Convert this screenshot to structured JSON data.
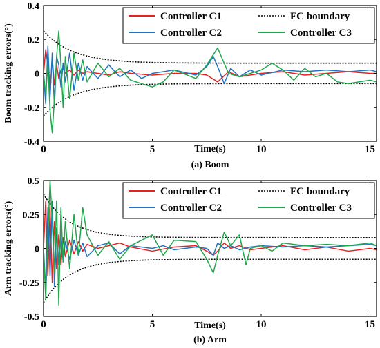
{
  "chart_data": [
    {
      "type": "line",
      "xlabel": "Time(s)",
      "ylabel": "Boom tracking errors(°)",
      "caption": "(a) Boom",
      "xlim": [
        0,
        15.3
      ],
      "ylim": [
        -0.4,
        0.4
      ],
      "xticks": [
        0,
        5,
        10,
        15
      ],
      "yticks": [
        -0.4,
        -0.2,
        0,
        0.2,
        0.4
      ],
      "xtick_labels": [
        "0",
        "5",
        "10",
        "15"
      ],
      "ytick_labels": [
        "-0.4",
        "-0.2",
        "0",
        "0.2",
        "0.4"
      ],
      "grid": false,
      "legend": {
        "placement": "top-right",
        "columns": 2,
        "order": [
          "Controller C1",
          "FC boundary",
          "Controller C2",
          "Controller C3"
        ]
      },
      "boundary": {
        "name": "FC boundary",
        "color": "#000000",
        "style": "dotted",
        "start": 0.25,
        "end": 0.06,
        "decay": 0.75
      },
      "series": [
        {
          "name": "Controller C1",
          "color": "#e8201f",
          "x": [
            0,
            0.1,
            0.2,
            0.3,
            0.4,
            0.5,
            0.6,
            0.7,
            0.8,
            0.9,
            1.0,
            1.2,
            1.4,
            1.6,
            1.8,
            2.0,
            2.5,
            3.0,
            3.5,
            4.0,
            5.0,
            6.0,
            7.0,
            7.5,
            8.0,
            8.5,
            9.0,
            10.0,
            11.0,
            12.0,
            13.0,
            14.0,
            15.0,
            15.3
          ],
          "y": [
            0,
            0.14,
            0.05,
            -0.12,
            0.09,
            -0.07,
            0.05,
            -0.03,
            0.02,
            0.03,
            0.0,
            0.02,
            -0.01,
            0.02,
            0.0,
            0.01,
            0.0,
            -0.01,
            0.01,
            0.0,
            -0.01,
            0.0,
            0.0,
            -0.01,
            -0.05,
            0.01,
            -0.02,
            0.0,
            0.01,
            -0.01,
            0.0,
            0.01,
            0.0,
            0.0
          ]
        },
        {
          "name": "Controller C2",
          "color": "#1f73c2",
          "x": [
            0,
            0.1,
            0.2,
            0.3,
            0.4,
            0.5,
            0.6,
            0.7,
            0.8,
            0.9,
            1.0,
            1.2,
            1.4,
            1.6,
            1.8,
            2.0,
            2.5,
            3.0,
            3.5,
            4.0,
            4.5,
            5.0,
            6.0,
            7.0,
            7.5,
            7.8,
            8.0,
            8.3,
            8.6,
            9.0,
            9.5,
            10.0,
            11.0,
            12.0,
            13.0,
            14.0,
            15.0,
            15.3
          ],
          "y": [
            0,
            -0.18,
            0.16,
            -0.14,
            0.12,
            -0.2,
            0.1,
            0.05,
            -0.08,
            0.06,
            -0.05,
            0.12,
            -0.1,
            0.06,
            -0.04,
            0.04,
            -0.03,
            0.05,
            -0.02,
            0.02,
            -0.03,
            0.0,
            0.02,
            -0.01,
            0.04,
            0.1,
            0.04,
            -0.06,
            0.03,
            -0.02,
            0.02,
            -0.01,
            0.02,
            0.01,
            0.02,
            0.01,
            0.02,
            0.01
          ]
        },
        {
          "name": "Controller C3",
          "color": "#1ea84a",
          "x": [
            0,
            0.1,
            0.2,
            0.3,
            0.4,
            0.5,
            0.6,
            0.7,
            0.8,
            0.9,
            1.0,
            1.2,
            1.4,
            1.6,
            1.8,
            2.0,
            2.5,
            3.0,
            3.5,
            4.0,
            4.5,
            5.0,
            5.5,
            6.0,
            7.0,
            7.5,
            8.0,
            8.5,
            9.0,
            10.0,
            10.5,
            11.0,
            11.5,
            12.0,
            12.5,
            13.0,
            13.5,
            14.0,
            15.0,
            15.3
          ],
          "y": [
            0,
            -0.12,
            0.05,
            -0.22,
            -0.35,
            -0.15,
            0.1,
            0.25,
            0.05,
            -0.2,
            0.1,
            -0.15,
            0.12,
            -0.04,
            0.08,
            -0.05,
            0.06,
            -0.02,
            0.03,
            -0.04,
            -0.06,
            -0.08,
            -0.05,
            0.02,
            -0.03,
            0.05,
            0.15,
            0.0,
            -0.02,
            0.02,
            0.06,
            0.02,
            -0.04,
            0.03,
            -0.02,
            0.0,
            -0.05,
            -0.06,
            -0.04,
            -0.05
          ]
        }
      ]
    },
    {
      "type": "line",
      "xlabel": "Time(s)",
      "ylabel": "Arm tracking errors(°)",
      "caption": "(b) Arm",
      "xlim": [
        0,
        15.3
      ],
      "ylim": [
        -0.5,
        0.5
      ],
      "xticks": [
        0,
        5,
        10,
        15
      ],
      "yticks": [
        -0.5,
        -0.25,
        0,
        0.25,
        0.5
      ],
      "xtick_labels": [
        "0",
        "5",
        "10",
        "15"
      ],
      "ytick_labels": [
        "-0.5",
        "-0.25",
        "0",
        "0.25",
        "0.5"
      ],
      "grid": false,
      "legend": {
        "placement": "top-right",
        "columns": 2,
        "order": [
          "Controller C1",
          "FC boundary",
          "Controller C2",
          "Controller C3"
        ]
      },
      "boundary": {
        "name": "FC boundary",
        "color": "#000000",
        "style": "dotted",
        "start": 0.4,
        "end": 0.08,
        "decay": 0.85
      },
      "series": [
        {
          "name": "Controller C1",
          "color": "#e8201f",
          "x": [
            0,
            0.1,
            0.2,
            0.3,
            0.4,
            0.5,
            0.6,
            0.7,
            0.8,
            0.9,
            1.0,
            1.2,
            1.4,
            1.6,
            1.8,
            2.0,
            2.5,
            3.0,
            3.5,
            4.0,
            5.0,
            6.0,
            7.0,
            7.5,
            7.8,
            8.0,
            8.3,
            8.6,
            9.0,
            9.5,
            10.0,
            11.0,
            12.0,
            13.0,
            14.0,
            15.0,
            15.3
          ],
          "y": [
            0,
            0.35,
            -0.2,
            0.3,
            -0.25,
            0.2,
            -0.15,
            0.1,
            -0.12,
            0.08,
            -0.06,
            0.06,
            -0.04,
            0.05,
            -0.02,
            0.03,
            0.0,
            0.02,
            0.04,
            0.01,
            -0.02,
            0.01,
            0.02,
            -0.02,
            -0.05,
            -0.02,
            0.04,
            0.0,
            0.02,
            -0.01,
            0.0,
            0.02,
            -0.01,
            0.01,
            -0.02,
            0.0,
            -0.01
          ]
        },
        {
          "name": "Controller C2",
          "color": "#1f73c2",
          "x": [
            0,
            0.1,
            0.2,
            0.3,
            0.4,
            0.5,
            0.6,
            0.7,
            0.8,
            0.9,
            1.0,
            1.2,
            1.4,
            1.6,
            1.8,
            2.0,
            2.5,
            3.0,
            3.5,
            4.0,
            4.5,
            5.0,
            5.5,
            6.0,
            7.0,
            7.5,
            7.8,
            8.0,
            8.3,
            8.6,
            9.0,
            9.5,
            10.0,
            11.0,
            12.0,
            13.0,
            14.0,
            15.0,
            15.3
          ],
          "y": [
            0,
            -0.3,
            0.3,
            -0.2,
            0.35,
            -0.28,
            0.15,
            -0.12,
            0.08,
            -0.1,
            0.05,
            -0.08,
            0.06,
            -0.05,
            0.04,
            -0.06,
            0.02,
            0.04,
            -0.04,
            0.02,
            0.01,
            0.0,
            0.02,
            -0.01,
            0.01,
            0.0,
            -0.05,
            0.04,
            0.0,
            0.02,
            -0.01,
            0.01,
            0.02,
            0.01,
            0.02,
            0.01,
            0.02,
            0.03,
            0.02
          ]
        },
        {
          "name": "Controller C3",
          "color": "#1ea84a",
          "x": [
            0,
            0.1,
            0.2,
            0.3,
            0.4,
            0.5,
            0.6,
            0.7,
            0.8,
            0.9,
            1.0,
            1.2,
            1.4,
            1.6,
            1.8,
            2.0,
            2.5,
            3.0,
            3.5,
            4.0,
            5.0,
            5.5,
            6.0,
            7.0,
            7.5,
            7.8,
            8.0,
            8.3,
            8.6,
            9.0,
            9.3,
            9.5,
            10.0,
            10.5,
            11.0,
            12.0,
            13.0,
            14.0,
            15.0,
            15.3
          ],
          "y": [
            0,
            -0.38,
            0.1,
            0.5,
            0.2,
            -0.18,
            0.35,
            -0.42,
            0.3,
            -0.1,
            0.2,
            -0.15,
            0.25,
            -0.05,
            0.3,
            0.1,
            -0.05,
            0.05,
            -0.08,
            0.02,
            0.1,
            -0.05,
            0.06,
            0.05,
            -0.08,
            -0.18,
            -0.05,
            0.12,
            0.02,
            0.1,
            -0.12,
            0.0,
            0.02,
            -0.02,
            0.04,
            0.02,
            0.03,
            0.02,
            0.04,
            0.02
          ]
        }
      ]
    }
  ]
}
